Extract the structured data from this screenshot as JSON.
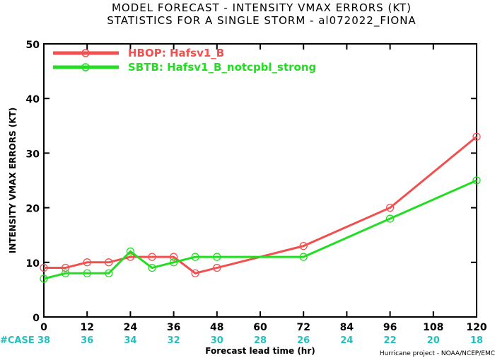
{
  "chart_data": {
    "type": "line",
    "title_line1": "MODEL FORECAST - INTENSITY VMAX ERRORS (KT)",
    "title_line2": "STATISTICS FOR A SINGLE STORM - al072022_FIONA",
    "xlabel": "Forecast lead time (hr)",
    "ylabel": "INTENSITY VMAX ERRORS (KT)",
    "xlim": [
      0,
      120
    ],
    "ylim": [
      0,
      50
    ],
    "xticks": [
      "0",
      "12",
      "24",
      "36",
      "48",
      "60",
      "72",
      "84",
      "96",
      "108",
      "120"
    ],
    "yticks": [
      "0",
      "10",
      "20",
      "30",
      "40",
      "50"
    ],
    "case_label": "#CASE",
    "case_counts": [
      "38",
      "36",
      "34",
      "32",
      "30",
      "28",
      "26",
      "24",
      "22",
      "20",
      "18"
    ],
    "credit": "Hurricane project - NOAA/NCEP/EMC",
    "legend_position": "top-left",
    "grid": false,
    "series": [
      {
        "name": "HBOP: Hafsv1_B",
        "color": "#f05050",
        "x": [
          0,
          6,
          12,
          18,
          24,
          30,
          36,
          42,
          48,
          72,
          96,
          120
        ],
        "y": [
          9,
          9,
          10,
          10,
          11,
          11,
          11,
          8,
          9,
          13,
          20,
          33
        ]
      },
      {
        "name": "SBTB: Hafsv1_B_notcpbl_strong",
        "color": "#22dd22",
        "x": [
          0,
          6,
          12,
          18,
          24,
          30,
          36,
          42,
          48,
          72,
          96,
          120
        ],
        "y": [
          7,
          8,
          8,
          8,
          12,
          9,
          10,
          11,
          11,
          11,
          18,
          25
        ]
      }
    ]
  }
}
